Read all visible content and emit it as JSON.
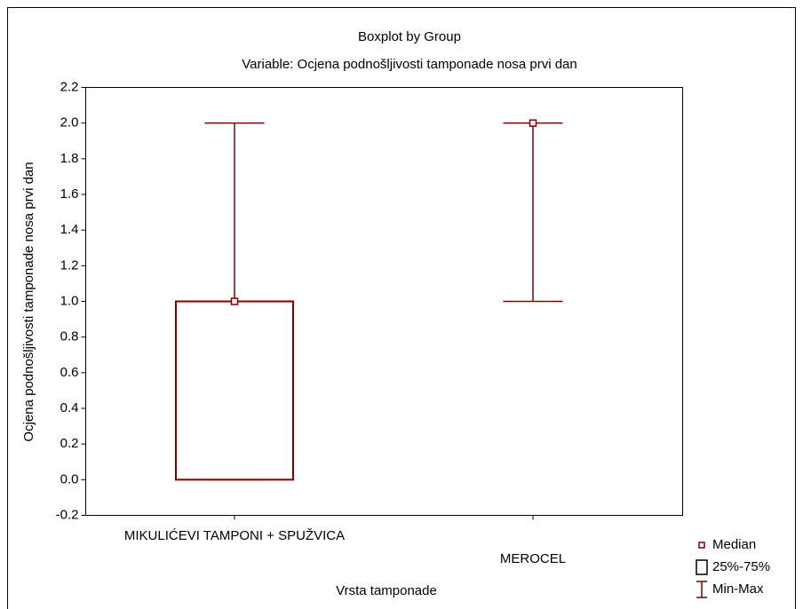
{
  "chart_data": {
    "type": "box",
    "title": "Boxplot by Group",
    "subtitle": "Variable: Ocjena podnošljivosti tamponade nosa prvi dan",
    "x_label": "Vrsta tamponade",
    "y_label": "Ocjena podnošljivosti tamponade nosa prvi dan",
    "categories": [
      "MIKULIĆEVI TAMPONI + SPUŽVICA",
      "MEROCEL"
    ],
    "min": [
      0,
      1
    ],
    "q1": [
      0,
      2
    ],
    "median": [
      1,
      2
    ],
    "q3": [
      1,
      2
    ],
    "max": [
      2,
      2
    ],
    "color": "#800000",
    "legend": [
      "Median",
      "25%-75%",
      "Min-Max"
    ],
    "ylim": [
      -0.2,
      2.2
    ],
    "yticks": [
      -0.2,
      {
        "value": 0,
        "label": "0.0"
      },
      0.2,
      0.4,
      0.6,
      0.8,
      {
        "value": 1,
        "label": "1.0"
      },
      1.2,
      1.4,
      1.6,
      1.8,
      {
        "value": 2,
        "label": "2.0"
      },
      2.2
    ]
  }
}
